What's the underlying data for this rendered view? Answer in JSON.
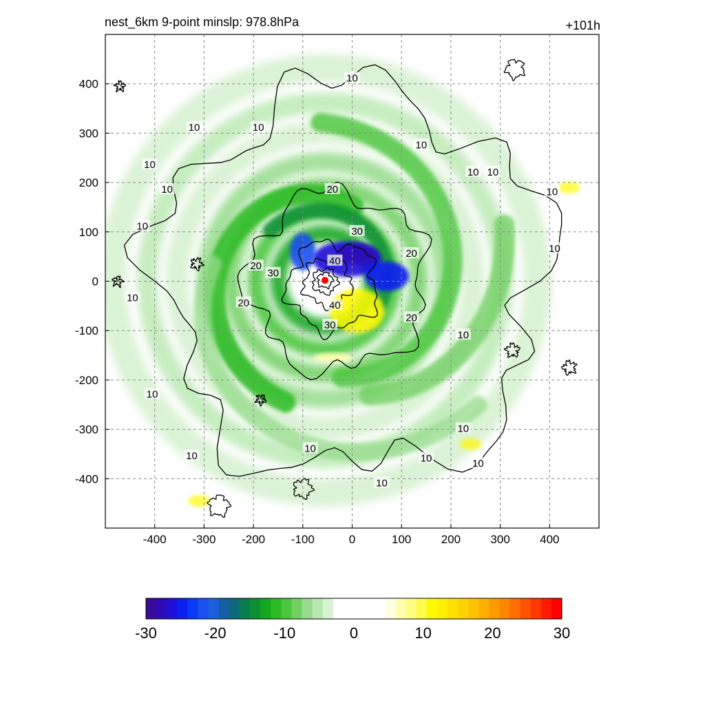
{
  "chart_data": {
    "type": "heatmap",
    "title": "nest_6km  9-point minslp: 978.8hPa",
    "time_label": "+101h",
    "xlim": [
      -500,
      500
    ],
    "ylim": [
      -500,
      500
    ],
    "x_ticks": [
      -400,
      -300,
      -200,
      -100,
      0,
      100,
      200,
      300,
      400
    ],
    "y_ticks": [
      400,
      300,
      200,
      100,
      0,
      -100,
      -200,
      -300,
      -400
    ],
    "grid": "dashed",
    "center_marker": {
      "x": -55,
      "y": 2,
      "color": "#ff0000"
    },
    "shading_field": {
      "description_levels": [
        -30,
        30
      ],
      "structure": "spiral bands of negative values around storm center; positive values south-east of center",
      "bands": [
        {
          "kind": "core_negative",
          "x": -10,
          "y": 45,
          "value": -22
        },
        {
          "kind": "eyewall_negative",
          "x": 80,
          "y": 5,
          "value": -20
        },
        {
          "kind": "positive_lobe",
          "x": 10,
          "y": -60,
          "value": 8
        },
        {
          "kind": "positive_spot",
          "x": -310,
          "y": -445,
          "value": 7
        },
        {
          "kind": "positive_spot",
          "x": 440,
          "y": 190,
          "value": 6
        },
        {
          "kind": "positive_spot",
          "x": 240,
          "y": -330,
          "value": 6
        }
      ]
    },
    "contour_levels": [
      10,
      20,
      30,
      40
    ],
    "contour_labels": [
      {
        "text": "10",
        "x": 0,
        "y": 410
      },
      {
        "text": "10",
        "x": -190,
        "y": 310
      },
      {
        "text": "10",
        "x": -320,
        "y": 310
      },
      {
        "text": "10",
        "x": -410,
        "y": 235
      },
      {
        "text": "10",
        "x": -375,
        "y": 185
      },
      {
        "text": "10",
        "x": -425,
        "y": 110
      },
      {
        "text": "10",
        "x": -445,
        "y": -35
      },
      {
        "text": "10",
        "x": 140,
        "y": 275
      },
      {
        "text": "10",
        "x": 285,
        "y": 220
      },
      {
        "text": "10",
        "x": 245,
        "y": 220
      },
      {
        "text": "10",
        "x": 405,
        "y": 180
      },
      {
        "text": "10",
        "x": 410,
        "y": 65
      },
      {
        "text": "10",
        "x": 225,
        "y": -110
      },
      {
        "text": "10",
        "x": -405,
        "y": -230
      },
      {
        "text": "10",
        "x": -325,
        "y": -355
      },
      {
        "text": "10",
        "x": -85,
        "y": -340
      },
      {
        "text": "10",
        "x": 150,
        "y": -360
      },
      {
        "text": "10",
        "x": 225,
        "y": -300
      },
      {
        "text": "10",
        "x": 255,
        "y": -370
      },
      {
        "text": "10",
        "x": 60,
        "y": -410
      },
      {
        "text": "20",
        "x": -40,
        "y": 185
      },
      {
        "text": "20",
        "x": 120,
        "y": 55
      },
      {
        "text": "20",
        "x": -195,
        "y": 30
      },
      {
        "text": "20",
        "x": -220,
        "y": -45
      },
      {
        "text": "20",
        "x": 120,
        "y": -75
      },
      {
        "text": "30",
        "x": 10,
        "y": 100
      },
      {
        "text": "30",
        "x": -160,
        "y": 15
      },
      {
        "text": "30",
        "x": -45,
        "y": -90
      },
      {
        "text": "40",
        "x": -35,
        "y": 40
      },
      {
        "text": "40",
        "x": -35,
        "y": -50
      }
    ],
    "colorbar": {
      "ticks": [
        "-30",
        "-20",
        "-10",
        "0",
        "10",
        "20",
        "30"
      ],
      "min": -30,
      "max": 30,
      "colors": [
        "#3a0a98",
        "#2f0ab8",
        "#1e10d8",
        "#0c1ff2",
        "#0a3af5",
        "#1a4ff0",
        "#1a60dc",
        "#155fa6",
        "#0a6a7a",
        "#0a7a50",
        "#0e8f35",
        "#14a81e",
        "#2cba22",
        "#4cc63c",
        "#72d063",
        "#96dc8c",
        "#b8e8b0",
        "#d8f2d2",
        "#ffffff",
        "#ffffff",
        "#ffffff",
        "#ffffff",
        "#ffffff",
        "#ffffe6",
        "#ffffb2",
        "#fffe80",
        "#fffc4d",
        "#fffa00",
        "#fff000",
        "#ffe100",
        "#ffd200",
        "#ffc200",
        "#ffb000",
        "#ff9c00",
        "#ff8600",
        "#ff6e00",
        "#ff5200",
        "#ff3800",
        "#ff1a00",
        "#ff0000"
      ]
    }
  }
}
